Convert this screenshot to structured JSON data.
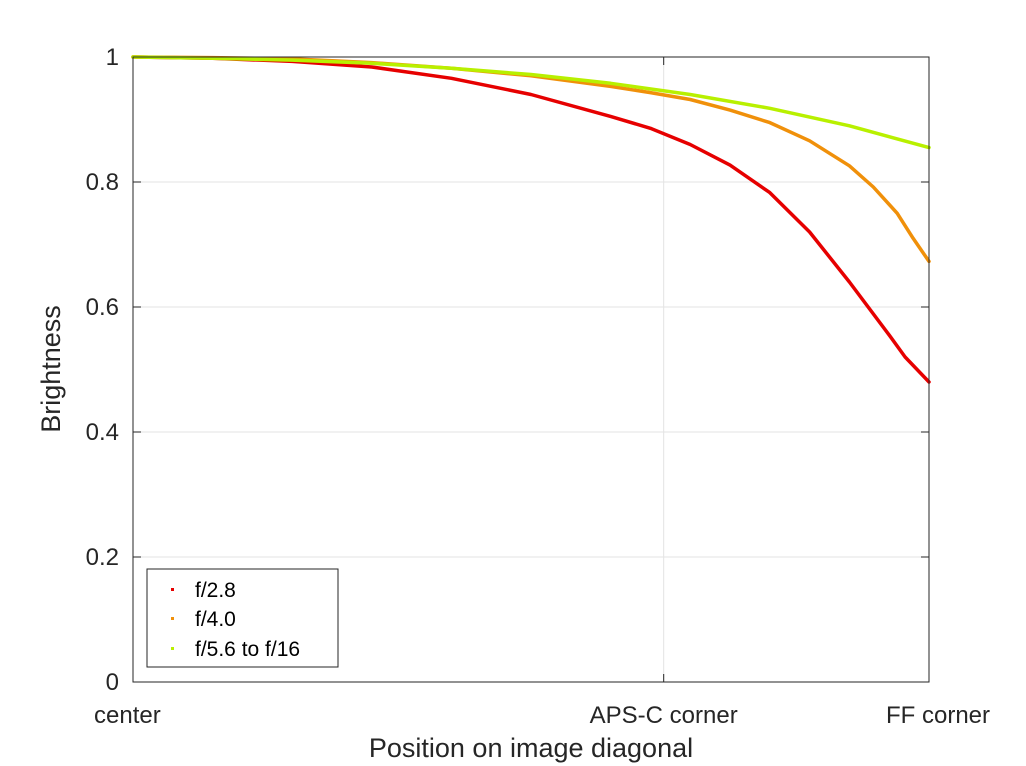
{
  "chart_data": {
    "type": "scatter",
    "title": "",
    "xlabel": "Position on image diagonal",
    "ylabel": "Brightness",
    "xlim": [
      0,
      1
    ],
    "ylim": [
      0,
      1
    ],
    "x_ticks": [
      {
        "value": 0,
        "label": "center"
      },
      {
        "value": 0.6667,
        "label": "APS-C corner"
      },
      {
        "value": 1,
        "label": "FF corner"
      }
    ],
    "y_ticks": [
      {
        "value": 0,
        "label": "0"
      },
      {
        "value": 0.2,
        "label": "0.2"
      },
      {
        "value": 0.4,
        "label": "0.4"
      },
      {
        "value": 0.6,
        "label": "0.6"
      },
      {
        "value": 0.8,
        "label": "0.8"
      },
      {
        "value": 1,
        "label": "1"
      }
    ],
    "grid": true,
    "legend_position": "bottom-left",
    "series": [
      {
        "name": "f/2.8",
        "color": "#e60000",
        "x": [
          0,
          0.1,
          0.2,
          0.3,
          0.4,
          0.5,
          0.6,
          0.65,
          0.7,
          0.75,
          0.8,
          0.85,
          0.9,
          0.95,
          0.97,
          1.0
        ],
        "y": [
          1.0,
          0.998,
          0.993,
          0.984,
          0.966,
          0.94,
          0.905,
          0.886,
          0.86,
          0.827,
          0.783,
          0.72,
          0.64,
          0.555,
          0.52,
          0.48
        ]
      },
      {
        "name": "f/4.0",
        "color": "#f0900a",
        "x": [
          0,
          0.1,
          0.2,
          0.3,
          0.4,
          0.5,
          0.6,
          0.65,
          0.7,
          0.75,
          0.8,
          0.85,
          0.9,
          0.93,
          0.96,
          0.98,
          1.0
        ],
        "y": [
          1.0,
          0.999,
          0.997,
          0.991,
          0.982,
          0.97,
          0.953,
          0.943,
          0.932,
          0.915,
          0.895,
          0.866,
          0.826,
          0.792,
          0.75,
          0.71,
          0.673
        ]
      },
      {
        "name": "f/5.6 to f/16",
        "color": "#b8f000",
        "x": [
          0,
          0.1,
          0.2,
          0.3,
          0.4,
          0.5,
          0.6,
          0.7,
          0.8,
          0.9,
          1.0
        ],
        "y": [
          1.0,
          0.998,
          0.995,
          0.99,
          0.982,
          0.972,
          0.958,
          0.94,
          0.918,
          0.89,
          0.855
        ]
      }
    ]
  }
}
